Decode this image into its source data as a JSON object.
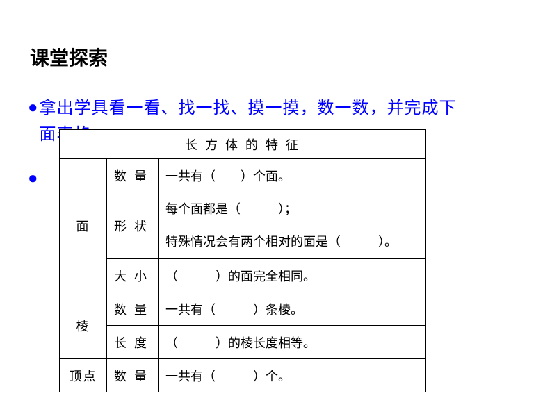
{
  "title": "课堂探索",
  "instruction": {
    "line1": "拿出学具看一看、找一找、摸一摸，数一数，并完成下",
    "line2": "面表格 。"
  },
  "table": {
    "caption": "长 方 体 的 特 征",
    "rows": [
      {
        "category": "面",
        "items": [
          {
            "attr": "数 量",
            "content": "一共有（　　）个面。"
          },
          {
            "attr": "形 状",
            "content_line1": "每个面都是（　　　）；",
            "content_line2": "特殊情况会有两个相对的面是（　　　）。"
          },
          {
            "attr": "大 小",
            "content": "（　　　）的面完全相同。"
          }
        ]
      },
      {
        "category": "棱",
        "items": [
          {
            "attr": "数 量",
            "content": "一共有（　　　）条棱。"
          },
          {
            "attr": "长 度",
            "content": "（　　　）的棱长度相等。"
          }
        ]
      },
      {
        "category": "顶点",
        "items": [
          {
            "attr": "数 量",
            "content": "一共有（　　　）个。"
          }
        ]
      }
    ]
  },
  "colors": {
    "title": "#000000",
    "instruction": "#0000ff",
    "bullet": "#0000ff",
    "table_border": "#000000",
    "table_text": "#000000",
    "background": "#ffffff"
  },
  "fonts": {
    "title_size": 28,
    "instruction_size": 24,
    "table_caption_size": 19,
    "table_cell_size": 18
  }
}
